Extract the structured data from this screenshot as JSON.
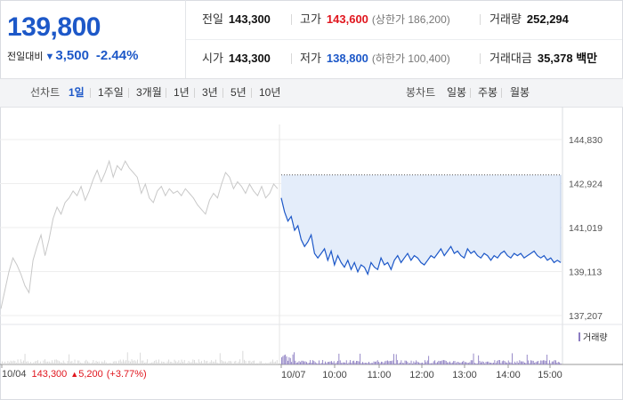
{
  "header": {
    "price": "139,800",
    "change_label": "전일대비",
    "change_icon": "down-triangle-icon",
    "change_value": "3,500",
    "change_rate": "-2.44%"
  },
  "stats": {
    "prev_close": {
      "label": "전일",
      "value": "143,300"
    },
    "high": {
      "label": "고가",
      "value": "143,600",
      "sub": "(상한가 186,200)"
    },
    "volume": {
      "label": "거래량",
      "value": "252,294"
    },
    "open": {
      "label": "시가",
      "value": "143,300"
    },
    "low": {
      "label": "저가",
      "value": "138,800",
      "sub": "(하한가 100,400)"
    },
    "amount": {
      "label": "거래대금",
      "value": "35,378 백만"
    }
  },
  "toolbar": {
    "line_chart_label": "선차트",
    "line_ranges": [
      "1일",
      "1주일",
      "3개월",
      "1년",
      "3년",
      "5년",
      "10년"
    ],
    "active_range": "1일",
    "candle_chart_label": "봉차트",
    "candle_ranges": [
      "일봉",
      "주봉",
      "월봉"
    ]
  },
  "colors": {
    "rise": "#e0161e",
    "fall": "#1d58c8",
    "prev_day_line": "#c8c8c8",
    "area_fill": "#e4edfa"
  },
  "chart_data": {
    "type": "line",
    "y_ticks": [
      "144,830",
      "142,924",
      "141,019",
      "139,113",
      "137,207"
    ],
    "ylim": [
      137207,
      144830
    ],
    "reference_price": 143300,
    "x_ticks": [
      "10/07",
      "10:00",
      "11:00",
      "12:00",
      "13:00",
      "14:00",
      "15:00"
    ],
    "volume_legend": "거래량",
    "prev_day_label": "10/04",
    "prev_day_close": "143,300",
    "prev_day_change_icon": "up-triangle-icon",
    "prev_day_change": "5,200",
    "prev_day_rate": "(+3.77%)",
    "series": [
      {
        "key": "prev_day",
        "values": [
          137500,
          138300,
          139100,
          139700,
          139400,
          139000,
          138500,
          138200,
          139600,
          140200,
          140700,
          139800,
          140500,
          141400,
          141900,
          141600,
          142100,
          142300,
          142600,
          142400,
          142800,
          142200,
          142600,
          143100,
          143500,
          143000,
          143400,
          143900,
          143200,
          143700,
          143500,
          143900,
          143600,
          143400,
          143200,
          142500,
          142900,
          142300,
          142100,
          142600,
          142800,
          142400,
          142700,
          142500,
          142600,
          142400,
          142700,
          142500,
          142300,
          142000,
          141800,
          141600,
          142200,
          142500,
          142300,
          142900,
          143400,
          143200,
          142700,
          143000,
          142800,
          142500,
          142900,
          142600,
          142400,
          142800,
          142300,
          142500,
          142900,
          142700
        ]
      },
      {
        "key": "today",
        "values": [
          142300,
          141700,
          141300,
          141500,
          140900,
          141100,
          140500,
          140200,
          140400,
          140700,
          139900,
          139700,
          139900,
          140100,
          139600,
          140000,
          139400,
          139800,
          139500,
          139300,
          139600,
          139200,
          139500,
          139100,
          139400,
          139300,
          139000,
          139500,
          139300,
          139200,
          139700,
          139400,
          139500,
          139200,
          139600,
          139800,
          139500,
          139700,
          139900,
          139600,
          139800,
          139700,
          139500,
          139400,
          139600,
          139800,
          139700,
          139900,
          140100,
          139800,
          140000,
          140200,
          139900,
          140000,
          139800,
          139700,
          140100,
          139900,
          140000,
          139800,
          139700,
          139900,
          139800,
          139600,
          139800,
          139700,
          139900,
          140000,
          139800,
          139700,
          139900,
          139800,
          139900,
          139700,
          139800,
          139900,
          140000,
          139800,
          139700,
          139800,
          139600,
          139700,
          139500,
          139600,
          139500
        ]
      }
    ]
  }
}
